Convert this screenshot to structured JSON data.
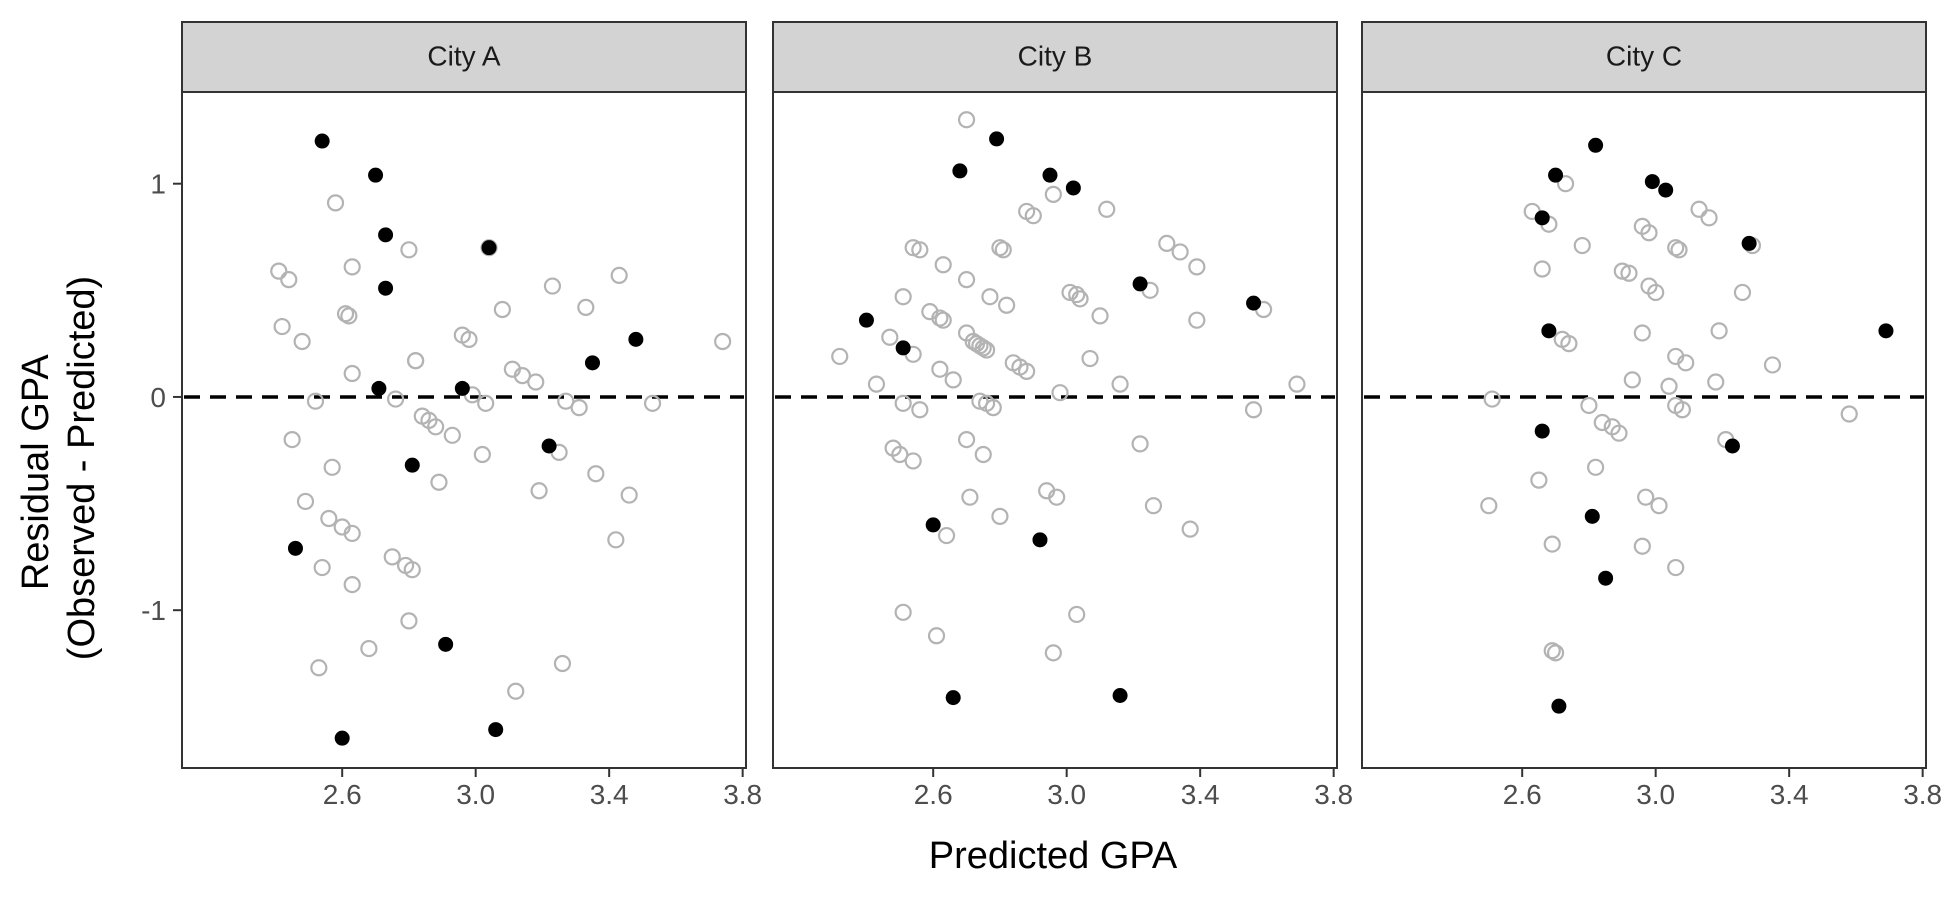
{
  "chart_data": {
    "type": "scatter",
    "facets": [
      "City A",
      "City B",
      "City C"
    ],
    "xlabel": "Predicted GPA",
    "ylabel_lines": [
      "Residual GPA",
      "(Observed - Predicted)"
    ],
    "xlim": [
      2.12,
      3.81
    ],
    "ylim": [
      -1.74,
      1.43
    ],
    "x_ticks": [
      2.6,
      3.0,
      3.4,
      3.8
    ],
    "x_tick_labels": [
      "2.6",
      "3.0",
      "3.4",
      "3.8"
    ],
    "y_ticks": [
      1,
      0,
      -1
    ],
    "y_tick_labels": [
      "1",
      "0",
      "-1"
    ],
    "reference_line_y": 0,
    "colors": {
      "highlighted": "#000000",
      "other": "#b3b3b3",
      "strip": "#d3d3d3"
    },
    "panels": [
      {
        "name": "City A",
        "highlighted": [
          [
            2.54,
            1.2
          ],
          [
            2.7,
            1.04
          ],
          [
            2.73,
            0.76
          ],
          [
            2.73,
            0.51
          ],
          [
            3.04,
            0.7
          ],
          [
            3.48,
            0.27
          ],
          [
            3.35,
            0.16
          ],
          [
            2.71,
            0.04
          ],
          [
            2.96,
            0.04
          ],
          [
            3.22,
            -0.23
          ],
          [
            2.81,
            -0.32
          ],
          [
            2.46,
            -0.71
          ],
          [
            2.91,
            -1.16
          ],
          [
            3.06,
            -1.56
          ],
          [
            2.6,
            -1.6
          ]
        ],
        "other": [
          [
            2.41,
            0.59
          ],
          [
            2.44,
            0.55
          ],
          [
            2.42,
            0.33
          ],
          [
            2.48,
            0.26
          ],
          [
            2.58,
            0.91
          ],
          [
            2.63,
            0.61
          ],
          [
            2.61,
            0.39
          ],
          [
            2.62,
            0.38
          ],
          [
            2.63,
            0.11
          ],
          [
            2.8,
            0.69
          ],
          [
            2.82,
            0.17
          ],
          [
            2.82,
            0.17
          ],
          [
            2.52,
            -0.02
          ],
          [
            2.76,
            -0.01
          ],
          [
            2.45,
            -0.2
          ],
          [
            2.57,
            -0.33
          ],
          [
            2.49,
            -0.49
          ],
          [
            2.56,
            -0.57
          ],
          [
            2.6,
            -0.61
          ],
          [
            2.63,
            -0.64
          ],
          [
            2.54,
            -0.8
          ],
          [
            2.63,
            -0.88
          ],
          [
            2.53,
            -1.27
          ],
          [
            2.68,
            -1.18
          ],
          [
            2.75,
            -0.75
          ],
          [
            2.79,
            -0.79
          ],
          [
            2.81,
            -0.81
          ],
          [
            2.8,
            -1.05
          ],
          [
            2.84,
            -0.09
          ],
          [
            2.86,
            -0.11
          ],
          [
            2.88,
            -0.14
          ],
          [
            2.93,
            -0.18
          ],
          [
            2.89,
            -0.4
          ],
          [
            2.96,
            0.29
          ],
          [
            2.98,
            0.27
          ],
          [
            2.99,
            0.01
          ],
          [
            3.03,
            -0.03
          ],
          [
            3.02,
            -0.27
          ],
          [
            3.04,
            0.7
          ],
          [
            3.08,
            0.41
          ],
          [
            3.11,
            0.13
          ],
          [
            3.14,
            0.1
          ],
          [
            3.18,
            0.07
          ],
          [
            3.23,
            0.52
          ],
          [
            3.27,
            -0.02
          ],
          [
            3.31,
            -0.05
          ],
          [
            3.33,
            0.42
          ],
          [
            3.25,
            -0.26
          ],
          [
            3.19,
            -0.44
          ],
          [
            3.36,
            -0.36
          ],
          [
            3.12,
            -1.38
          ],
          [
            3.26,
            -1.25
          ],
          [
            3.43,
            0.57
          ],
          [
            3.42,
            -0.67
          ],
          [
            3.46,
            -0.46
          ],
          [
            3.53,
            -0.03
          ],
          [
            3.74,
            0.26
          ]
        ]
      },
      {
        "name": "City B",
        "highlighted": [
          [
            2.79,
            1.21
          ],
          [
            2.68,
            1.06
          ],
          [
            2.95,
            1.04
          ],
          [
            3.02,
            0.98
          ],
          [
            3.22,
            0.53
          ],
          [
            3.56,
            0.44
          ],
          [
            2.4,
            0.36
          ],
          [
            2.51,
            0.23
          ],
          [
            2.6,
            -0.6
          ],
          [
            2.92,
            -0.67
          ],
          [
            2.66,
            -1.41
          ],
          [
            3.16,
            -1.4
          ]
        ],
        "other": [
          [
            2.7,
            1.3
          ],
          [
            2.32,
            0.19
          ],
          [
            2.43,
            0.06
          ],
          [
            2.47,
            0.28
          ],
          [
            2.51,
            0.47
          ],
          [
            2.54,
            0.7
          ],
          [
            2.56,
            0.69
          ],
          [
            2.54,
            0.2
          ],
          [
            2.59,
            0.4
          ],
          [
            2.62,
            0.37
          ],
          [
            2.63,
            0.36
          ],
          [
            2.63,
            0.62
          ],
          [
            2.62,
            0.13
          ],
          [
            2.66,
            0.08
          ],
          [
            2.7,
            0.55
          ],
          [
            2.7,
            0.3
          ],
          [
            2.72,
            0.26
          ],
          [
            2.73,
            0.25
          ],
          [
            2.74,
            0.24
          ],
          [
            2.75,
            0.23
          ],
          [
            2.76,
            0.22
          ],
          [
            2.77,
            0.47
          ],
          [
            2.8,
            0.7
          ],
          [
            2.81,
            0.69
          ],
          [
            2.82,
            0.43
          ],
          [
            2.84,
            0.16
          ],
          [
            2.86,
            0.14
          ],
          [
            2.88,
            0.12
          ],
          [
            2.88,
            0.87
          ],
          [
            2.9,
            0.85
          ],
          [
            2.94,
            -0.44
          ],
          [
            2.97,
            -0.47
          ],
          [
            2.98,
            0.02
          ],
          [
            2.96,
            0.95
          ],
          [
            3.01,
            0.49
          ],
          [
            3.03,
            0.48
          ],
          [
            3.04,
            0.46
          ],
          [
            3.07,
            0.18
          ],
          [
            3.1,
            0.38
          ],
          [
            3.12,
            0.88
          ],
          [
            3.16,
            0.06
          ],
          [
            3.22,
            -0.22
          ],
          [
            3.25,
            0.5
          ],
          [
            3.26,
            -0.51
          ],
          [
            3.3,
            0.72
          ],
          [
            3.34,
            0.68
          ],
          [
            3.37,
            -0.62
          ],
          [
            3.39,
            0.61
          ],
          [
            3.39,
            0.36
          ],
          [
            3.56,
            -0.06
          ],
          [
            3.59,
            0.41
          ],
          [
            3.69,
            0.06
          ],
          [
            2.48,
            -0.24
          ],
          [
            2.51,
            -0.03
          ],
          [
            2.5,
            -0.27
          ],
          [
            2.54,
            -0.3
          ],
          [
            2.56,
            -0.06
          ],
          [
            2.7,
            -0.2
          ],
          [
            2.74,
            -0.02
          ],
          [
            2.76,
            -0.03
          ],
          [
            2.78,
            -0.05
          ],
          [
            2.75,
            -0.27
          ],
          [
            2.71,
            -0.47
          ],
          [
            2.64,
            -0.65
          ],
          [
            2.8,
            -0.56
          ],
          [
            2.51,
            -1.01
          ],
          [
            2.61,
            -1.12
          ],
          [
            3.03,
            -1.02
          ],
          [
            2.96,
            -1.2
          ]
        ]
      },
      {
        "name": "City C",
        "highlighted": [
          [
            2.82,
            1.18
          ],
          [
            2.7,
            1.04
          ],
          [
            2.99,
            1.01
          ],
          [
            3.03,
            0.97
          ],
          [
            2.66,
            0.84
          ],
          [
            3.28,
            0.72
          ],
          [
            2.68,
            0.31
          ],
          [
            3.69,
            0.31
          ],
          [
            2.66,
            -0.16
          ],
          [
            3.23,
            -0.23
          ],
          [
            2.81,
            -0.56
          ],
          [
            2.85,
            -0.85
          ],
          [
            2.71,
            -1.45
          ]
        ],
        "other": [
          [
            2.51,
            -0.01
          ],
          [
            2.5,
            -0.51
          ],
          [
            2.63,
            0.87
          ],
          [
            2.66,
            0.6
          ],
          [
            2.68,
            0.81
          ],
          [
            2.72,
            0.27
          ],
          [
            2.73,
            1.0
          ],
          [
            2.74,
            0.25
          ],
          [
            2.78,
            0.71
          ],
          [
            2.8,
            -0.04
          ],
          [
            2.82,
            -0.33
          ],
          [
            2.84,
            -0.12
          ],
          [
            2.87,
            -0.14
          ],
          [
            2.89,
            -0.17
          ],
          [
            2.9,
            0.59
          ],
          [
            2.92,
            0.58
          ],
          [
            2.93,
            0.08
          ],
          [
            2.96,
            0.3
          ],
          [
            2.97,
            -0.47
          ],
          [
            2.98,
            0.52
          ],
          [
            3.0,
            0.49
          ],
          [
            3.01,
            -0.51
          ],
          [
            2.96,
            -0.7
          ],
          [
            2.96,
            0.8
          ],
          [
            2.98,
            0.77
          ],
          [
            3.04,
            0.05
          ],
          [
            3.06,
            0.7
          ],
          [
            3.07,
            0.69
          ],
          [
            3.06,
            0.19
          ],
          [
            3.09,
            0.16
          ],
          [
            3.06,
            -0.04
          ],
          [
            3.08,
            -0.06
          ],
          [
            3.06,
            -0.8
          ],
          [
            3.13,
            0.88
          ],
          [
            3.16,
            0.84
          ],
          [
            3.18,
            0.07
          ],
          [
            3.19,
            0.31
          ],
          [
            3.21,
            -0.2
          ],
          [
            3.26,
            0.49
          ],
          [
            3.29,
            0.71
          ],
          [
            3.35,
            0.15
          ],
          [
            3.58,
            -0.08
          ],
          [
            2.65,
            -0.39
          ],
          [
            2.69,
            -0.69
          ],
          [
            2.69,
            -1.19
          ],
          [
            2.7,
            -1.2
          ]
        ]
      }
    ]
  }
}
